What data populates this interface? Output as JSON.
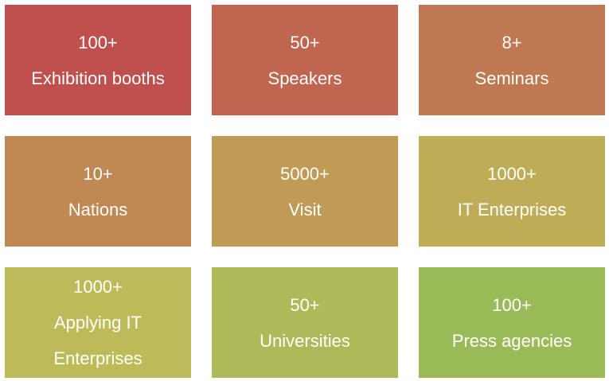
{
  "tiles": [
    {
      "value": "100+",
      "label": "Exhibition booths",
      "color": "#c0504d"
    },
    {
      "value": "50+",
      "label": "Speakers",
      "color": "#c0654f"
    },
    {
      "value": "8+",
      "label": "Seminars",
      "color": "#c07850"
    },
    {
      "value": "10+",
      "label": "Nations",
      "color": "#c08852"
    },
    {
      "value": "5000+",
      "label": "Visit",
      "color": "#c09b55"
    },
    {
      "value": "1000+",
      "label": "IT Enterprises",
      "color": "#bfac57"
    },
    {
      "value": "1000+",
      "label": "Applying IT Enterprises",
      "color": "#bcbb58"
    },
    {
      "value": "50+",
      "label": "Universities",
      "color": "#aeb95a"
    },
    {
      "value": "100+",
      "label": "Press agencies",
      "color": "#9bbb59"
    }
  ]
}
